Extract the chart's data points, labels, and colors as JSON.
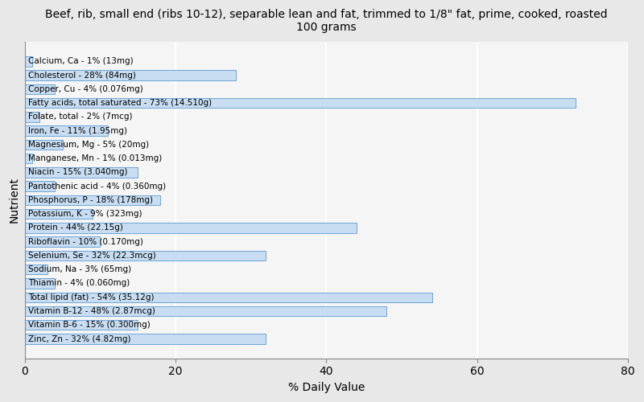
{
  "title": "Beef, rib, small end (ribs 10-12), separable lean and fat, trimmed to 1/8\" fat, prime, cooked, roasted\n100 grams",
  "xlabel": "% Daily Value",
  "ylabel": "Nutrient",
  "xlim": [
    0,
    80
  ],
  "bar_color": "#c8ddf2",
  "bar_edge_color": "#5b9bd5",
  "background_color": "#e8e8e8",
  "plot_bg_color": "#f5f5f5",
  "text_color": "#000000",
  "grid_color": "#ffffff",
  "nutrients": [
    {
      "label": "Calcium, Ca - 1% (13mg)",
      "value": 1
    },
    {
      "label": "Cholesterol - 28% (84mg)",
      "value": 28
    },
    {
      "label": "Copper, Cu - 4% (0.076mg)",
      "value": 4
    },
    {
      "label": "Fatty acids, total saturated - 73% (14.510g)",
      "value": 73
    },
    {
      "label": "Folate, total - 2% (7mcg)",
      "value": 2
    },
    {
      "label": "Iron, Fe - 11% (1.95mg)",
      "value": 11
    },
    {
      "label": "Magnesium, Mg - 5% (20mg)",
      "value": 5
    },
    {
      "label": "Manganese, Mn - 1% (0.013mg)",
      "value": 1
    },
    {
      "label": "Niacin - 15% (3.040mg)",
      "value": 15
    },
    {
      "label": "Pantothenic acid - 4% (0.360mg)",
      "value": 4
    },
    {
      "label": "Phosphorus, P - 18% (178mg)",
      "value": 18
    },
    {
      "label": "Potassium, K - 9% (323mg)",
      "value": 9
    },
    {
      "label": "Protein - 44% (22.15g)",
      "value": 44
    },
    {
      "label": "Riboflavin - 10% (0.170mg)",
      "value": 10
    },
    {
      "label": "Selenium, Se - 32% (22.3mcg)",
      "value": 32
    },
    {
      "label": "Sodium, Na - 3% (65mg)",
      "value": 3
    },
    {
      "label": "Thiamin - 4% (0.060mg)",
      "value": 4
    },
    {
      "label": "Total lipid (fat) - 54% (35.12g)",
      "value": 54
    },
    {
      "label": "Vitamin B-12 - 48% (2.87mcg)",
      "value": 48
    },
    {
      "label": "Vitamin B-6 - 15% (0.300mg)",
      "value": 15
    },
    {
      "label": "Zinc, Zn - 32% (4.82mg)",
      "value": 32
    }
  ],
  "label_fontsize": 7.5,
  "title_fontsize": 10,
  "axis_fontsize": 10,
  "xticks": [
    0,
    20,
    40,
    60,
    80
  ]
}
